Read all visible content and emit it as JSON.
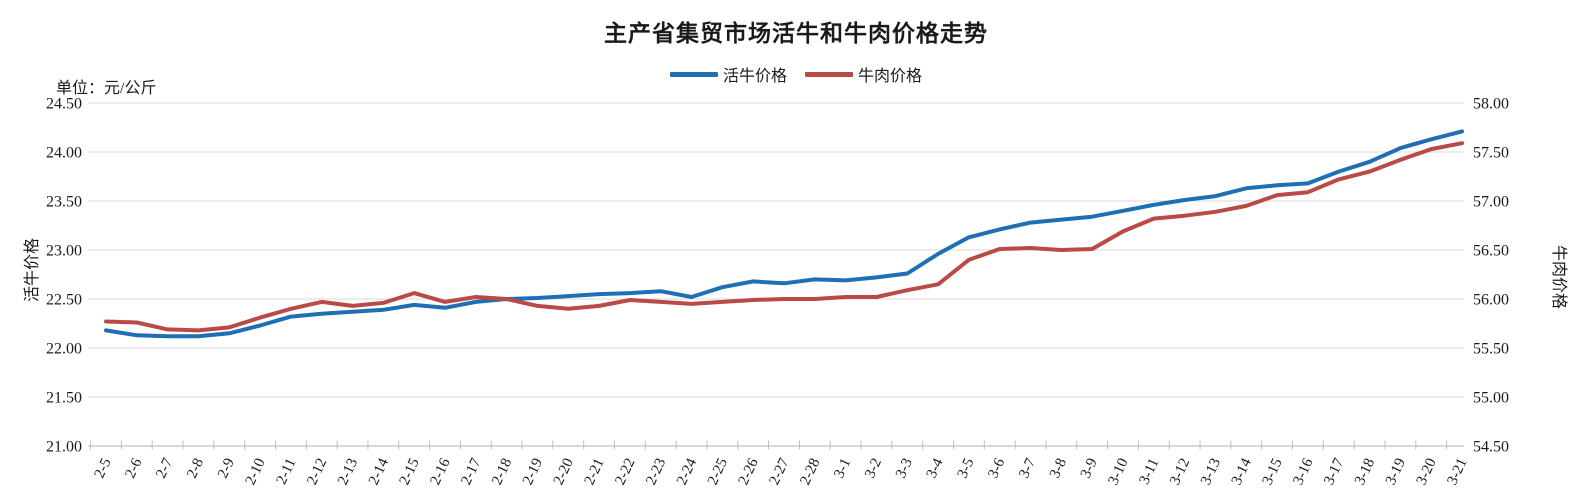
{
  "title": "主产省集贸市场活牛和牛肉价格走势",
  "unit_note": "单位：元/公斤",
  "colors": {
    "live_cattle": "#1E6FB4",
    "beef": "#B94A45",
    "gridline": "#D9D9D9",
    "axis_line": "#BFBFBF"
  },
  "legend": [
    {
      "label": "活牛价格",
      "color": "#1E6FB4"
    },
    {
      "label": "牛肉价格",
      "color": "#B94A45"
    }
  ],
  "left_axis": {
    "title": "活牛价格",
    "min": 21.0,
    "max": 24.5,
    "step": 0.5,
    "ticks": [
      "24.50",
      "24.00",
      "23.50",
      "23.00",
      "22.50",
      "22.00",
      "21.50",
      "21.00"
    ]
  },
  "right_axis": {
    "title": "牛肉价格",
    "min": 54.5,
    "max": 58.0,
    "step": 0.5,
    "ticks": [
      "58.00",
      "57.50",
      "57.00",
      "56.50",
      "56.00",
      "55.50",
      "55.00",
      "54.50"
    ]
  },
  "chart_data": {
    "type": "line",
    "title": "主产省集贸市场活牛和牛肉价格走势",
    "unit": "元/公斤",
    "grid": true,
    "legend_position": "top",
    "ylabel_left": "活牛价格",
    "ylabel_right": "牛肉价格",
    "ylim_left": [
      21.0,
      24.5
    ],
    "ylim_right": [
      54.5,
      58.0
    ],
    "categories": [
      "2-5",
      "2-6",
      "2-7",
      "2-8",
      "2-9",
      "2-10",
      "2-11",
      "2-12",
      "2-13",
      "2-14",
      "2-15",
      "2-16",
      "2-17",
      "2-18",
      "2-19",
      "2-20",
      "2-21",
      "2-22",
      "2-23",
      "2-24",
      "2-25",
      "2-26",
      "2-27",
      "2-28",
      "3-1",
      "3-2",
      "3-3",
      "3-4",
      "3-5",
      "3-6",
      "3-7",
      "3-8",
      "3-9",
      "3-10",
      "3-11",
      "3-12",
      "3-13",
      "3-14",
      "3-15",
      "3-16",
      "3-17",
      "3-18",
      "3-19",
      "3-20",
      "3-21"
    ],
    "series": [
      {
        "name": "活牛价格",
        "axis": "left",
        "color": "#1E6FB4",
        "values": [
          22.18,
          22.13,
          22.12,
          22.12,
          22.15,
          22.23,
          22.32,
          22.35,
          22.37,
          22.39,
          22.44,
          22.41,
          22.47,
          22.5,
          22.51,
          22.53,
          22.55,
          22.56,
          22.58,
          22.52,
          22.62,
          22.68,
          22.66,
          22.7,
          22.69,
          22.72,
          22.76,
          22.96,
          23.13,
          23.21,
          23.28,
          23.31,
          23.34,
          23.4,
          23.46,
          23.51,
          23.55,
          23.63,
          23.66,
          23.68,
          23.8,
          23.9,
          24.04,
          24.13,
          24.21
        ]
      },
      {
        "name": "牛肉价格",
        "axis": "right",
        "color": "#B94A45",
        "values": [
          55.77,
          55.76,
          55.69,
          55.68,
          55.71,
          55.81,
          55.9,
          55.97,
          55.93,
          55.96,
          56.06,
          55.97,
          56.02,
          56.0,
          55.93,
          55.9,
          55.93,
          55.99,
          55.97,
          55.95,
          55.97,
          55.99,
          56.0,
          56.0,
          56.02,
          56.02,
          56.09,
          56.15,
          56.4,
          56.51,
          56.52,
          56.5,
          56.51,
          56.69,
          56.82,
          56.85,
          56.89,
          56.95,
          57.06,
          57.09,
          57.22,
          57.3,
          57.42,
          57.53,
          57.59
        ]
      }
    ]
  }
}
